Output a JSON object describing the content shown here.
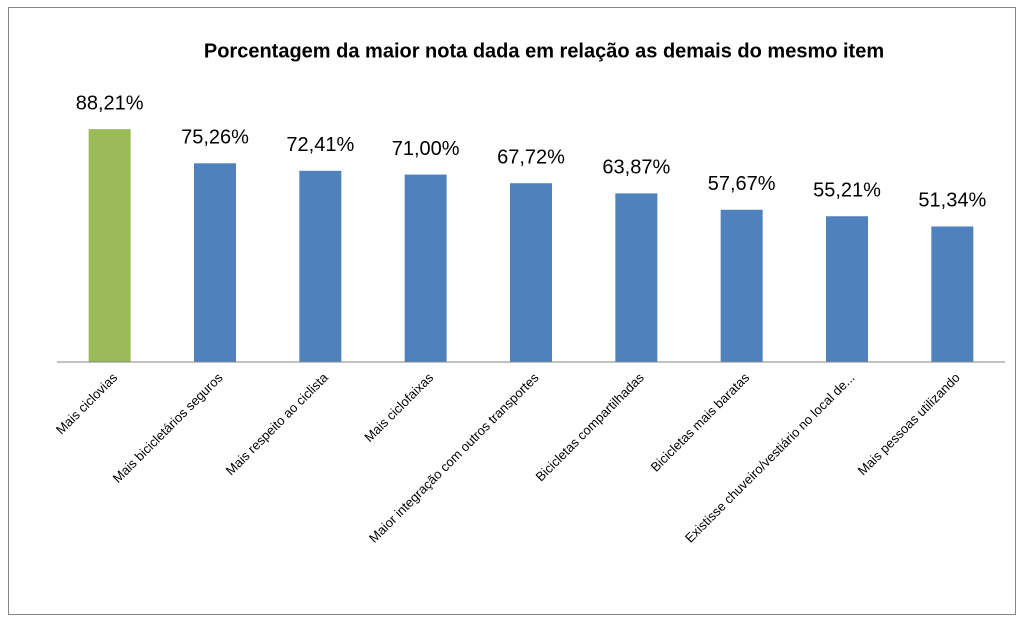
{
  "chart_data": {
    "type": "bar",
    "title": "Porcentagem da maior nota dada em relação as demais do mesmo item",
    "categories": [
      "Mais ciclovias",
      "Mais bicicletários seguros",
      "Mais respeito ao ciclista",
      "Mais ciclofaixas",
      "Maior integração com outros transportes",
      "Bicicletas compartilhadas",
      "Bicicletas mais baratas",
      "Existisse chuveiro/vestiário no local de...",
      "Mais pessoas utilizando"
    ],
    "values": [
      88.21,
      75.26,
      72.41,
      71.0,
      67.72,
      63.87,
      57.67,
      55.21,
      51.34
    ],
    "value_labels": [
      "88,21%",
      "75,26%",
      "72,41%",
      "71,00%",
      "67,72%",
      "63,87%",
      "57,67%",
      "55,21%",
      "51,34%"
    ],
    "colors": [
      "#9bbb59",
      "#4f81bd",
      "#4f81bd",
      "#4f81bd",
      "#4f81bd",
      "#4f81bd",
      "#4f81bd",
      "#4f81bd",
      "#4f81bd"
    ],
    "ylim": [
      0,
      100
    ]
  }
}
